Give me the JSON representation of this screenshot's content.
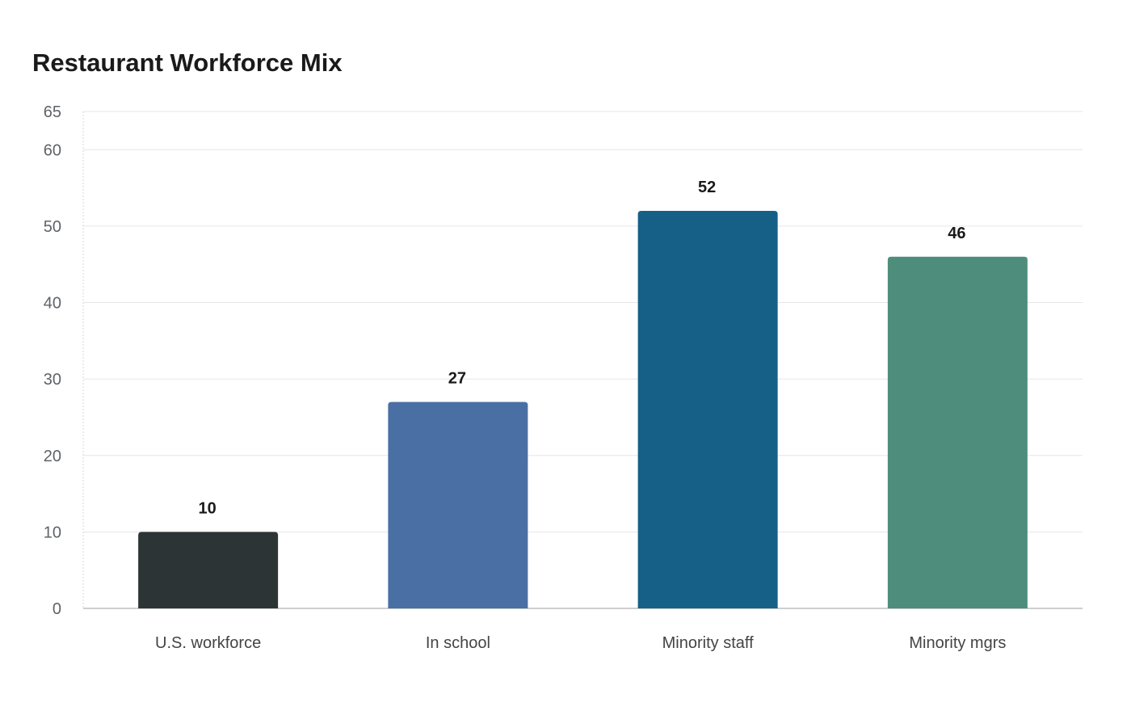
{
  "chart_data": {
    "type": "bar",
    "title": "Restaurant Workforce Mix",
    "xlabel": "",
    "ylabel": "",
    "categories": [
      "U.S. workforce",
      "In school",
      "Minority staff",
      "Minority mgrs"
    ],
    "values": [
      10,
      27,
      52,
      46
    ],
    "colors": [
      "#2d3436",
      "#4a6fa5",
      "#166088",
      "#4e8d7c"
    ],
    "ylim": [
      0,
      65
    ],
    "yticks": [
      0,
      10,
      20,
      30,
      40,
      50,
      60,
      65
    ],
    "grid": true,
    "legend": "none",
    "data_labels": true
  }
}
